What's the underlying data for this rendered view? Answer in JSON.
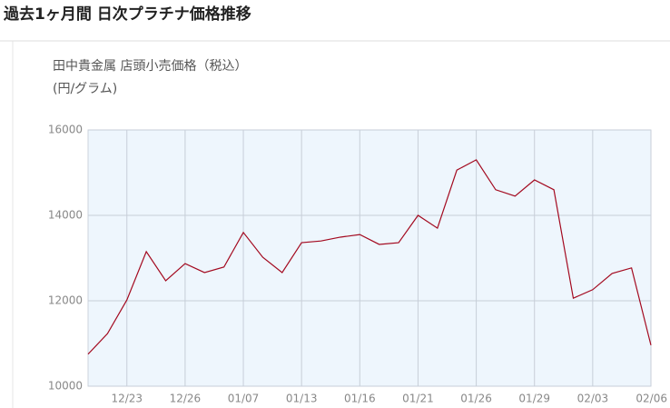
{
  "chart_data": {
    "type": "line",
    "title": "過去1ヶ月間 日次プラチナ価格推移",
    "subtitle": "田中貴金属 店頭小売価格（税込）",
    "y_label": "(円/グラム)",
    "categories": [
      null,
      null,
      "12/23",
      null,
      null,
      "12/26",
      null,
      null,
      "01/07",
      null,
      null,
      "01/13",
      null,
      null,
      "01/16",
      null,
      null,
      "01/21",
      null,
      null,
      "01/26",
      null,
      null,
      "01/29",
      null,
      null,
      "02/03",
      null,
      null,
      "02/06"
    ],
    "series": [
      {
        "name": "プラチナ",
        "color": "#a3091f",
        "values": [
          10750,
          11230,
          12020,
          13150,
          12470,
          12870,
          12660,
          12790,
          13600,
          13020,
          12660,
          13360,
          13400,
          13490,
          13550,
          13320,
          13360,
          14000,
          13700,
          15060,
          15300,
          14600,
          14450,
          14830,
          14600,
          12060,
          12260,
          12640,
          12770,
          10960
        ]
      }
    ],
    "ylim": [
      10000,
      16000
    ],
    "yticks": [
      10000,
      12000,
      14000,
      16000
    ],
    "grid": true
  }
}
